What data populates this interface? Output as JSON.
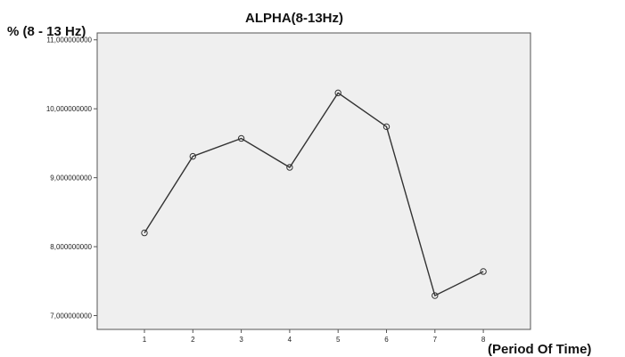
{
  "chart_data": {
    "type": "line",
    "title": "ALPHA(8-13Hz)",
    "ylabel": "% (8 - 13 Hz)",
    "xlabel": "(Period Of Time)",
    "x": [
      1,
      2,
      3,
      4,
      5,
      6,
      7,
      8
    ],
    "values": [
      8.2,
      9.31,
      9.57,
      9.15,
      10.23,
      9.74,
      7.29,
      7.64
    ],
    "ylim": [
      6.8,
      11.1
    ],
    "yticks": [
      7,
      8,
      9,
      10,
      11
    ],
    "ytick_labels": [
      "7,000000000",
      "8,000000000",
      "9,000000000",
      "10,000000000",
      "11,000000000"
    ],
    "xtick_labels": [
      "1",
      "2",
      "3",
      "4",
      "5",
      "6",
      "7",
      "8"
    ],
    "grid": false,
    "legend": "none",
    "colors": {
      "plot_bg": "#efefef",
      "line": "#333333",
      "frame": "#555555"
    }
  }
}
